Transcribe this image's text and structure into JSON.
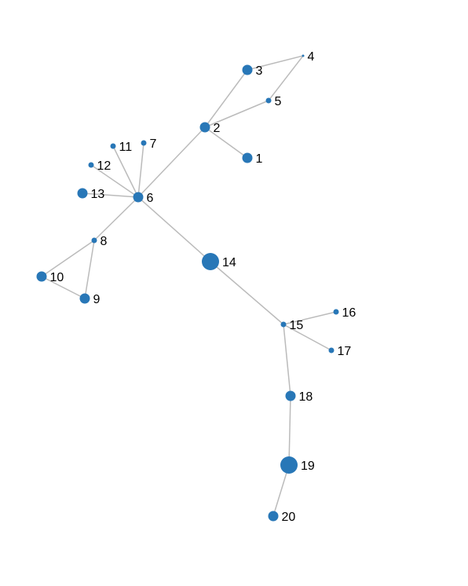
{
  "graph": {
    "node_color": "#2877b7",
    "edge_color": "#bbbbbb",
    "nodes": [
      {
        "id": "1",
        "label": "1",
        "size": "medium"
      },
      {
        "id": "2",
        "label": "2",
        "size": "medium"
      },
      {
        "id": "3",
        "label": "3",
        "size": "medium"
      },
      {
        "id": "4",
        "label": "4",
        "size": "tiny"
      },
      {
        "id": "5",
        "label": "5",
        "size": "small"
      },
      {
        "id": "6",
        "label": "6",
        "size": "medium"
      },
      {
        "id": "7",
        "label": "7",
        "size": "small"
      },
      {
        "id": "8",
        "label": "8",
        "size": "small"
      },
      {
        "id": "9",
        "label": "9",
        "size": "medium"
      },
      {
        "id": "10",
        "label": "10",
        "size": "medium"
      },
      {
        "id": "11",
        "label": "11",
        "size": "small"
      },
      {
        "id": "12",
        "label": "12",
        "size": "small"
      },
      {
        "id": "13",
        "label": "13",
        "size": "medium"
      },
      {
        "id": "14",
        "label": "14",
        "size": "large"
      },
      {
        "id": "15",
        "label": "15",
        "size": "small"
      },
      {
        "id": "16",
        "label": "16",
        "size": "small"
      },
      {
        "id": "17",
        "label": "17",
        "size": "small"
      },
      {
        "id": "18",
        "label": "18",
        "size": "medium"
      },
      {
        "id": "19",
        "label": "19",
        "size": "large"
      },
      {
        "id": "20",
        "label": "20",
        "size": "medium"
      }
    ],
    "edges": [
      {
        "source": "2",
        "target": "1"
      },
      {
        "source": "2",
        "target": "3"
      },
      {
        "source": "2",
        "target": "5"
      },
      {
        "source": "3",
        "target": "4"
      },
      {
        "source": "5",
        "target": "4"
      },
      {
        "source": "6",
        "target": "2"
      },
      {
        "source": "6",
        "target": "7"
      },
      {
        "source": "6",
        "target": "11"
      },
      {
        "source": "6",
        "target": "12"
      },
      {
        "source": "6",
        "target": "13"
      },
      {
        "source": "6",
        "target": "8"
      },
      {
        "source": "6",
        "target": "14"
      },
      {
        "source": "8",
        "target": "10"
      },
      {
        "source": "8",
        "target": "9"
      },
      {
        "source": "10",
        "target": "9"
      },
      {
        "source": "14",
        "target": "15"
      },
      {
        "source": "15",
        "target": "16"
      },
      {
        "source": "15",
        "target": "17"
      },
      {
        "source": "15",
        "target": "18"
      },
      {
        "source": "18",
        "target": "19"
      },
      {
        "source": "19",
        "target": "20"
      }
    ]
  }
}
